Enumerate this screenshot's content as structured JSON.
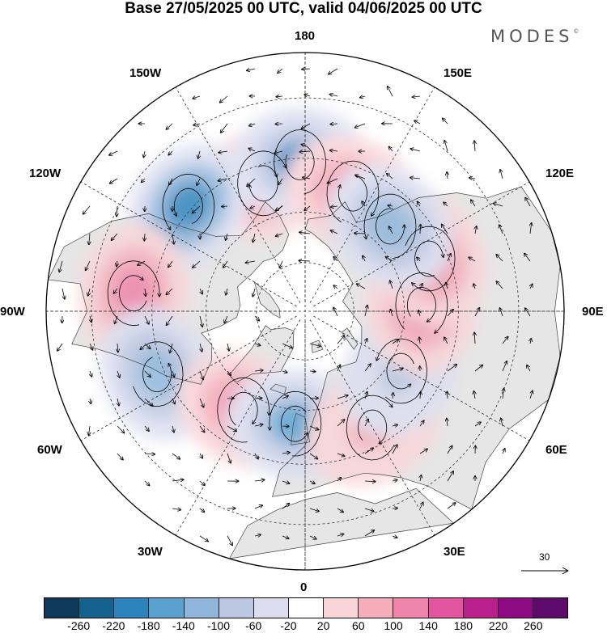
{
  "title": "Base 27/05/2025 00 UTC, valid 04/06/2025 00 UTC",
  "brand": "MODES",
  "brand_mark": "©",
  "longitude_labels": {
    "lon_180": "180",
    "lon_150e": "150E",
    "lon_120e": "120E",
    "lon_90e": "90E",
    "lon_60e": "60E",
    "lon_30e": "30E",
    "lon_0": "0",
    "lon_30w": "30W",
    "lon_60w": "60W",
    "lon_90w": "90W",
    "lon_120w": "120W",
    "lon_150w": "150W"
  },
  "wind_reference": {
    "label": "30"
  },
  "colorbar": {
    "colors": [
      "#0f3a5c",
      "#15628f",
      "#2d83bb",
      "#5aa1cf",
      "#8fb6da",
      "#bcc7e2",
      "#dcdef0",
      "#ffffff",
      "#f9d5d8",
      "#f4aeb9",
      "#ef85aa",
      "#e1569e",
      "#bb1f8c",
      "#8e0a82",
      "#5e0b6e"
    ],
    "tick_labels": [
      "-260",
      "-220",
      "-180",
      "-140",
      "-100",
      "-60",
      "-20",
      "20",
      "60",
      "100",
      "140",
      "180",
      "220",
      "260"
    ]
  },
  "map": {
    "projection": "north polar stereographic",
    "land_color": "#e6e6e6",
    "ocean_color": "#ffffff",
    "field_extrema": [
      {
        "lon": -162,
        "lat": 50,
        "value": 150
      },
      {
        "lon": -178,
        "lat": 46,
        "value": -180
      },
      {
        "lon": 158,
        "lat": 52,
        "value": 140
      },
      {
        "lon": -132,
        "lat": 44,
        "value": -200
      },
      {
        "lon": -96,
        "lat": 40,
        "value": 110
      },
      {
        "lon": -67,
        "lat": 43,
        "value": -120
      },
      {
        "lon": -32,
        "lat": 55,
        "value": 130
      },
      {
        "lon": -5,
        "lat": 56,
        "value": -160
      },
      {
        "lon": 30,
        "lat": 50,
        "value": 100
      },
      {
        "lon": 58,
        "lat": 56,
        "value": -70
      },
      {
        "lon": 93,
        "lat": 55,
        "value": 110
      },
      {
        "lon": 113,
        "lat": 50,
        "value": 110
      },
      {
        "lon": 135,
        "lat": 54,
        "value": -120
      }
    ]
  }
}
